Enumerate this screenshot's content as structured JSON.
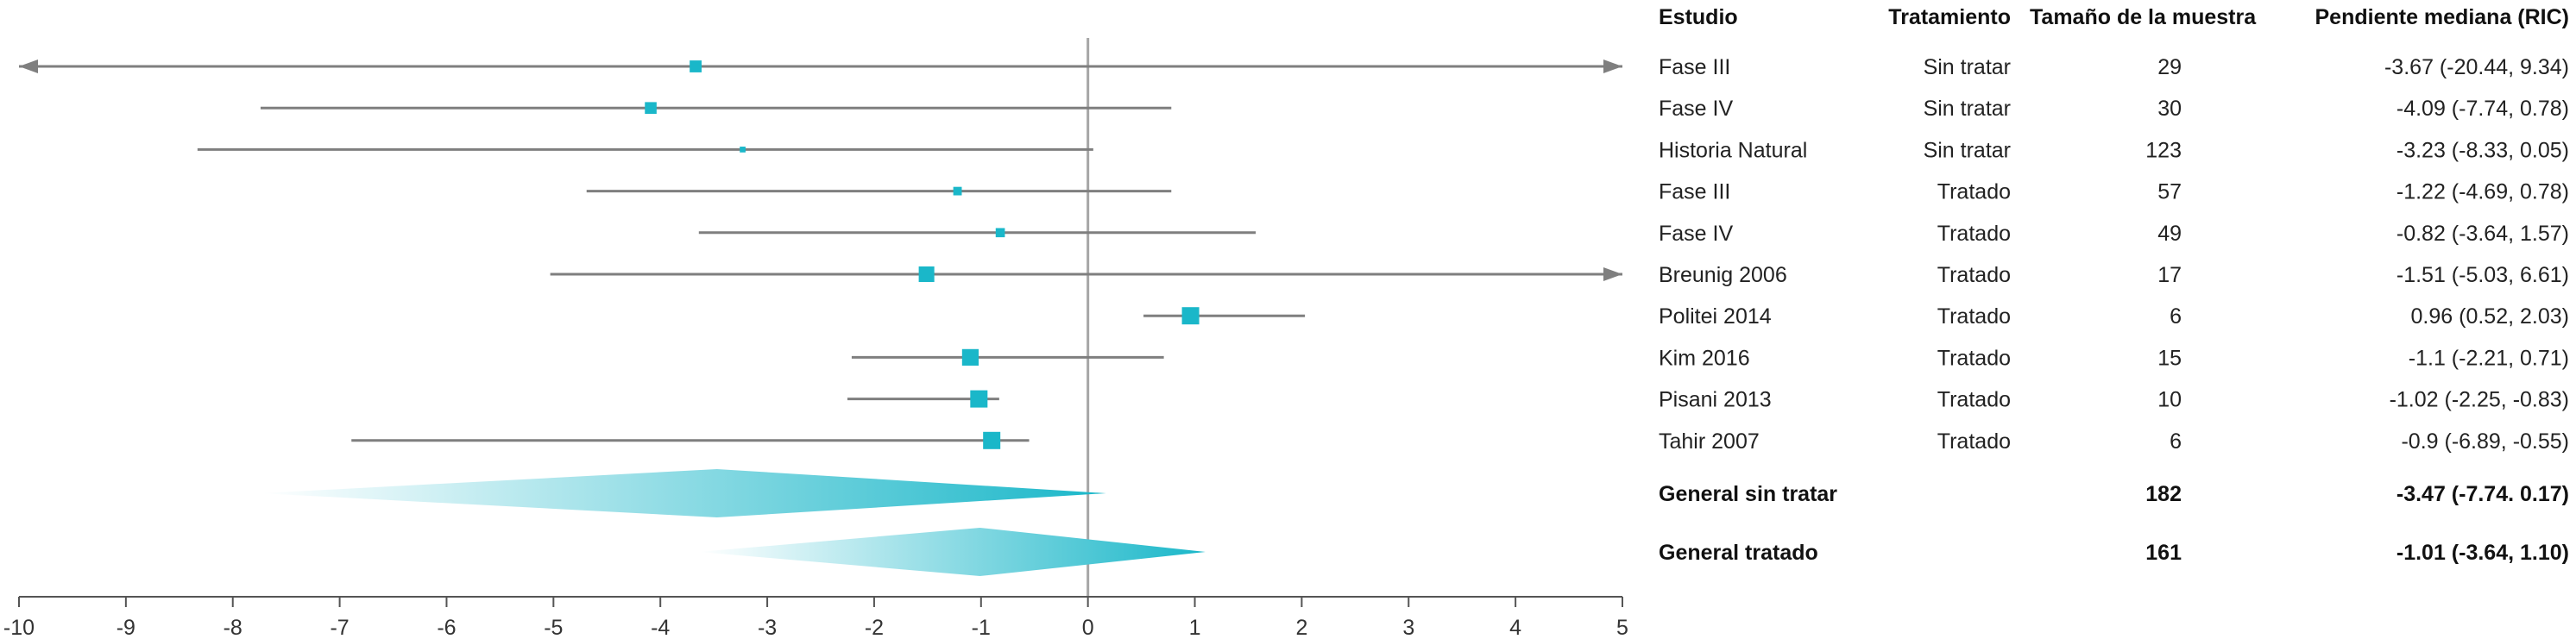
{
  "headers": {
    "study": "Estudio",
    "treatment": "Tratamiento",
    "sample_size": "Tamaño de la muestra",
    "median_slope": "Pendiente mediana (RIC)"
  },
  "colors": {
    "accent": "#1ab7c9",
    "line": "#7f7f7f",
    "axis": "#555555"
  },
  "chart_data": {
    "type": "forest",
    "title": "",
    "xlabel": "",
    "ylabel": "",
    "xlim": [
      -10,
      5
    ],
    "xticks": [
      "-10",
      "-9",
      "-8",
      "-7",
      "-6",
      "-5",
      "-4",
      "-3",
      "-2",
      "-1",
      "0",
      "1",
      "2",
      "3",
      "4",
      "5"
    ],
    "reference_line": 0,
    "rows": [
      {
        "study": "Fase III",
        "treatment": "Sin tratar",
        "n": "29",
        "estimate_text": "-3.67 (-20.44, 9.34)",
        "estimate": -3.67,
        "lower": -20.44,
        "upper": 9.34
      },
      {
        "study": "Fase IV",
        "treatment": "Sin tratar",
        "n": "30",
        "estimate_text": "-4.09 (-7.74, 0.78)",
        "estimate": -4.09,
        "lower": -7.74,
        "upper": 0.78
      },
      {
        "study": "Historia Natural",
        "treatment": "Sin tratar",
        "n": "123",
        "estimate_text": "-3.23 (-8.33, 0.05)",
        "estimate": -3.23,
        "lower": -8.33,
        "upper": 0.05
      },
      {
        "study": "Fase III",
        "treatment": "Tratado",
        "n": "57",
        "estimate_text": "-1.22 (-4.69, 0.78)",
        "estimate": -1.22,
        "lower": -4.69,
        "upper": 0.78
      },
      {
        "study": "Fase IV",
        "treatment": "Tratado",
        "n": "49",
        "estimate_text": "-0.82 (-3.64, 1.57)",
        "estimate": -0.82,
        "lower": -3.64,
        "upper": 1.57
      },
      {
        "study": "Breunig 2006",
        "treatment": "Tratado",
        "n": "17",
        "estimate_text": "-1.51 (-5.03, 6.61)",
        "estimate": -1.51,
        "lower": -5.03,
        "upper": 6.61
      },
      {
        "study": "Politei 2014",
        "treatment": "Tratado",
        "n": "6",
        "estimate_text": "0.96 (0.52, 2.03)",
        "estimate": 0.96,
        "lower": 0.52,
        "upper": 2.03
      },
      {
        "study": "Kim 2016",
        "treatment": "Tratado",
        "n": "15",
        "estimate_text": "-1.1 (-2.21, 0.71)",
        "estimate": -1.1,
        "lower": -2.21,
        "upper": 0.71
      },
      {
        "study": "Pisani 2013",
        "treatment": "Tratado",
        "n": "10",
        "estimate_text": "-1.02 (-2.25, -0.83)",
        "estimate": -1.02,
        "lower": -2.25,
        "upper": -0.83
      },
      {
        "study": "Tahir 2007",
        "treatment": "Tratado",
        "n": "6",
        "estimate_text": "-0.9 (-6.89, -0.55)",
        "estimate": -0.9,
        "lower": -6.89,
        "upper": -0.55
      }
    ],
    "summaries": [
      {
        "label": "General sin tratar",
        "n": "182",
        "estimate_text": "-3.47 (-7.74. 0.17)",
        "estimate": -3.47,
        "lower": -7.74,
        "upper": 0.17
      },
      {
        "label": "General tratado",
        "n": "161",
        "estimate_text": "-1.01 (-3.64, 1.10)",
        "estimate": -1.01,
        "lower": -3.64,
        "upper": 1.1
      }
    ]
  }
}
